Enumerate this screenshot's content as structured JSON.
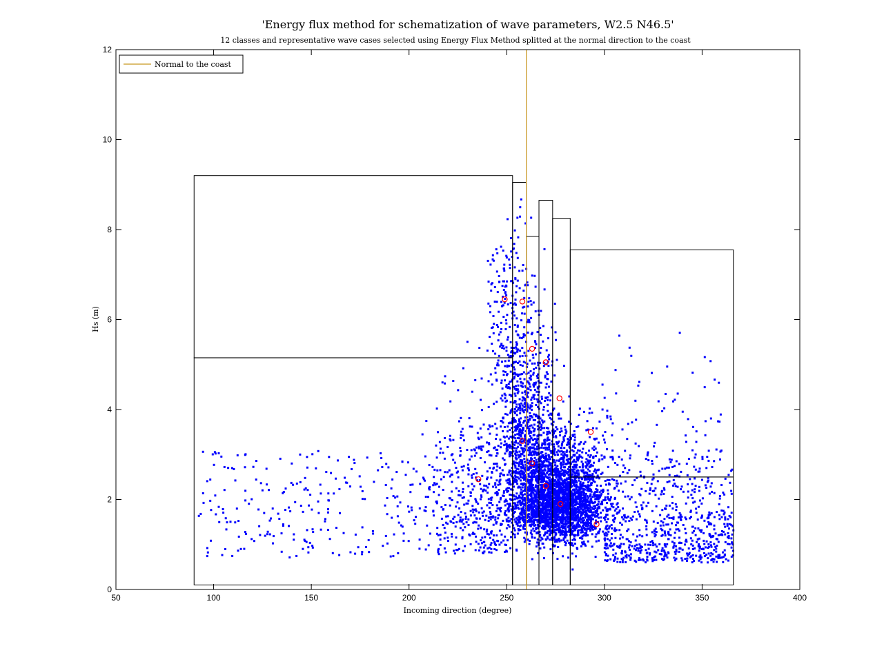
{
  "chart_data": {
    "type": "scatter",
    "title": "'Energy flux method for schematization of wave parameters, W2.5 N46.5'",
    "subtitle": "12 classes and representative wave cases selected using Energy Flux Method splitted at the normal direction to the coast",
    "xlabel": "Incoming direction (degree)",
    "ylabel": "Hs (m)",
    "xlim": [
      50,
      400
    ],
    "ylim": [
      0,
      12
    ],
    "xticks": [
      50,
      100,
      150,
      200,
      250,
      300,
      350,
      400
    ],
    "yticks": [
      0,
      2,
      4,
      6,
      8,
      10,
      12
    ],
    "grid": false,
    "legend_position": "top-left",
    "legend": [
      {
        "label": "Normal to the coast",
        "color": "#d4a017"
      }
    ],
    "normal_direction": 260,
    "colors": {
      "points": "#0000ff",
      "normal_line": "#c8961e",
      "classes": "#000000",
      "representative": "#ff0000"
    },
    "scatter_note": "dense blue point cloud of wave records (direction vs Hs)",
    "class_boxes": [
      {
        "x": [
          90,
          253
        ],
        "y": [
          0.1,
          5.15
        ]
      },
      {
        "x": [
          90,
          253
        ],
        "y": [
          5.15,
          9.2
        ]
      },
      {
        "x": [
          253,
          260
        ],
        "y": [
          0.1,
          9.05
        ]
      },
      {
        "x": [
          260,
          266.5
        ],
        "y": [
          0.1,
          7.85
        ]
      },
      {
        "x": [
          266.5,
          273.5
        ],
        "y": [
          0.1,
          8.65
        ]
      },
      {
        "x": [
          273.5,
          282.5
        ],
        "y": [
          0.1,
          8.25
        ]
      },
      {
        "x": [
          282.5,
          366
        ],
        "y": [
          0.1,
          2.5
        ]
      },
      {
        "x": [
          282.5,
          366
        ],
        "y": [
          2.5,
          7.55
        ]
      }
    ],
    "representative_points": [
      {
        "x": 249,
        "y": 6.45
      },
      {
        "x": 258,
        "y": 6.4
      },
      {
        "x": 263,
        "y": 5.35
      },
      {
        "x": 270,
        "y": 5.05
      },
      {
        "x": 277,
        "y": 4.25
      },
      {
        "x": 293,
        "y": 3.5
      },
      {
        "x": 258,
        "y": 3.3
      },
      {
        "x": 263,
        "y": 2.8
      },
      {
        "x": 235.5,
        "y": 2.45
      },
      {
        "x": 270,
        "y": 2.3
      },
      {
        "x": 277.5,
        "y": 1.9
      },
      {
        "x": 296,
        "y": 1.45
      }
    ]
  }
}
